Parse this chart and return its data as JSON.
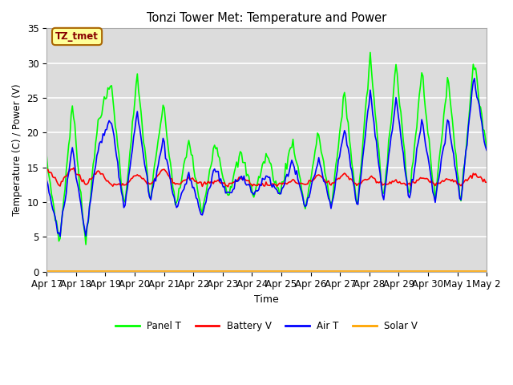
{
  "title": "Tonzi Tower Met: Temperature and Power",
  "xlabel": "Time",
  "ylabel": "Temperature (C) / Power (V)",
  "ylim": [
    0,
    35
  ],
  "xlim": [
    0,
    15
  ],
  "annotation_text": "TZ_tmet",
  "annotation_bg": "#FFFF99",
  "annotation_border": "#AA6600",
  "annotation_text_color": "#880000",
  "bg_color": "#DCDCDC",
  "fig_bg": "#FFFFFF",
  "xtick_labels": [
    "Apr 17",
    "Apr 18",
    "Apr 19",
    "Apr 20",
    "Apr 21",
    "Apr 22",
    "Apr 23",
    "Apr 24",
    "Apr 25",
    "Apr 26",
    "Apr 27",
    "Apr 28",
    "Apr 29",
    "Apr 30",
    "May 1",
    "May 2"
  ],
  "series_colors": {
    "Panel T": "#00FF00",
    "Battery V": "#FF0000",
    "Air T": "#0000FF",
    "Solar V": "#FFA500"
  },
  "line_width": 1.2,
  "n_points": 360,
  "panel_peaks": [
    16,
    4,
    24,
    4,
    22,
    27,
    9,
    28,
    10,
    24,
    9,
    19,
    8,
    19,
    11,
    17,
    11,
    17,
    11,
    19,
    9,
    20,
    9,
    26,
    9,
    31,
    10,
    30,
    10,
    29,
    10,
    28,
    10,
    30,
    18
  ],
  "air_peaks": [
    13,
    5,
    18,
    5,
    18,
    22,
    9,
    23,
    10,
    19,
    9,
    14,
    8,
    15,
    11,
    14,
    11,
    14,
    11,
    16,
    9,
    16,
    9,
    21,
    9,
    26,
    10,
    25,
    10,
    22,
    10,
    22,
    10,
    28,
    17
  ],
  "battery_base": 12.5,
  "battery_peaks": [
    15,
    12.5,
    15,
    12.5,
    14.5,
    12.5,
    12.5,
    14,
    12.5,
    14.8,
    12.5,
    13.5,
    12.5,
    13,
    12.5,
    13.5,
    12.5,
    12.5,
    12.5,
    13,
    12.5,
    13.8,
    12.5,
    14,
    12.5,
    13.5,
    12.5,
    13,
    12.5,
    13.5,
    12.5,
    13.5,
    12.5,
    14,
    13
  ]
}
